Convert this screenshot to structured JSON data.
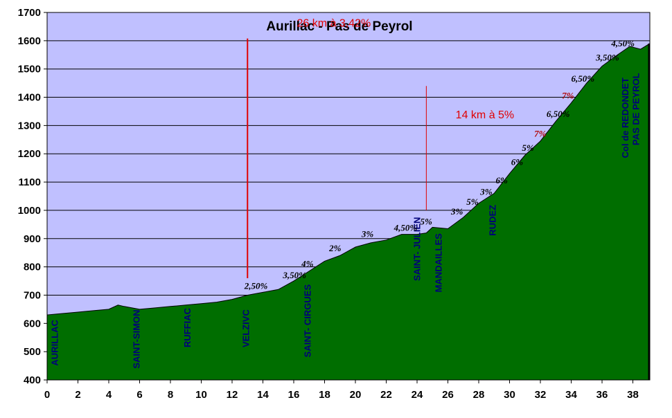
{
  "chart_data": {
    "type": "area",
    "title": "Aurillac - Pas de Peyrol",
    "xlabel": "",
    "ylabel": "",
    "xlim": [
      0,
      39.1
    ],
    "ylim": [
      400,
      1700
    ],
    "x_ticks": [
      0,
      2,
      4,
      6,
      8,
      10,
      12,
      14,
      16,
      18,
      20,
      22,
      24,
      26,
      28,
      30,
      32,
      34,
      36,
      38
    ],
    "y_ticks": [
      400,
      500,
      600,
      700,
      800,
      900,
      1000,
      1100,
      1200,
      1300,
      1400,
      1500,
      1600,
      1700
    ],
    "grid": "horizontal",
    "colors": {
      "plot_background": "#c0c0ff",
      "area_fill": "#006e00",
      "marker_line": "#e00000",
      "place_label": "#00007a",
      "grade_label": "#000000",
      "grade_label_steep": "#b00000"
    },
    "series": [
      {
        "x": [
          0,
          1,
          2,
          3,
          4,
          4.6,
          5,
          6,
          7,
          8,
          9,
          10,
          11,
          12,
          13,
          14,
          15,
          16,
          17,
          18,
          19,
          20,
          21,
          22,
          23,
          24,
          24.6,
          25,
          26,
          27,
          28,
          29,
          30,
          31,
          32,
          33,
          34,
          35,
          36,
          37,
          37.8,
          38.5,
          39.1
        ],
        "values": [
          630,
          635,
          640,
          645,
          650,
          665,
          660,
          650,
          655,
          660,
          665,
          670,
          675,
          685,
          700,
          710,
          720,
          750,
          785,
          820,
          840,
          870,
          885,
          895,
          915,
          915,
          920,
          940,
          935,
          975,
          1025,
          1060,
          1130,
          1195,
          1245,
          1315,
          1380,
          1450,
          1510,
          1550,
          1580,
          1570,
          1590
        ]
      }
    ],
    "annotations": {
      "summary_total": {
        "text": "26 km à 3,42%",
        "x": 18.6,
        "y": 1650
      },
      "summary_final": {
        "text": "14 km à 5%",
        "x": 28.4,
        "y": 1325
      },
      "markers": [
        {
          "x": 13,
          "y_from": 760,
          "y_to": 1608,
          "weight": "thick"
        },
        {
          "x": 24.6,
          "y_from": 1000,
          "y_to": 1440,
          "weight": "thin"
        }
      ],
      "places": [
        {
          "name": "AURILLAC",
          "x": 0.7,
          "y": 450
        },
        {
          "name": "SAINT-SIMON",
          "x": 6.0,
          "y": 440
        },
        {
          "name": "RUFFIAC",
          "x": 9.3,
          "y": 515
        },
        {
          "name": "VELZIVC",
          "x": 13.1,
          "y": 515
        },
        {
          "name": "SAINT- CIRGUES",
          "x": 17.1,
          "y": 480
        },
        {
          "name": "SAINT- JULIEN",
          "x": 24.2,
          "y": 750
        },
        {
          "name": "MANDAILLES",
          "x": 25.6,
          "y": 710
        },
        {
          "name": "RUDEZ",
          "x": 29.1,
          "y": 910
        },
        {
          "name": "Col de REDONDET",
          "x": 37.7,
          "y": 1185
        },
        {
          "name": "PAS DE PEYROL",
          "x": 38.4,
          "y": 1230
        }
      ],
      "grades": [
        {
          "text": "2,50%",
          "x": 12.8,
          "y": 722,
          "steep": false
        },
        {
          "text": "3,50%",
          "x": 15.3,
          "y": 760,
          "steep": false
        },
        {
          "text": "4%",
          "x": 16.5,
          "y": 800,
          "steep": false
        },
        {
          "text": "2%",
          "x": 18.3,
          "y": 855,
          "steep": false
        },
        {
          "text": "3%",
          "x": 20.4,
          "y": 905,
          "steep": false
        },
        {
          "text": "4,50%",
          "x": 22.5,
          "y": 928,
          "steep": false
        },
        {
          "text": "5%",
          "x": 24.2,
          "y": 950,
          "steep": false
        },
        {
          "text": "3%",
          "x": 26.2,
          "y": 985,
          "steep": false
        },
        {
          "text": "5%",
          "x": 27.2,
          "y": 1020,
          "steep": false
        },
        {
          "text": "3%",
          "x": 28.1,
          "y": 1055,
          "steep": false
        },
        {
          "text": "6%",
          "x": 29.1,
          "y": 1095,
          "steep": false
        },
        {
          "text": "6%",
          "x": 30.1,
          "y": 1160,
          "steep": false
        },
        {
          "text": "5%",
          "x": 30.8,
          "y": 1210,
          "steep": false
        },
        {
          "text": "7%",
          "x": 31.6,
          "y": 1260,
          "steep": true
        },
        {
          "text": "6,50%",
          "x": 32.4,
          "y": 1330,
          "steep": false
        },
        {
          "text": "7%",
          "x": 33.4,
          "y": 1395,
          "steep": true
        },
        {
          "text": "6,50%",
          "x": 34.0,
          "y": 1455,
          "steep": false
        },
        {
          "text": "3,50%",
          "x": 35.6,
          "y": 1530,
          "steep": false
        },
        {
          "text": "4,50%",
          "x": 36.6,
          "y": 1580,
          "steep": false
        }
      ]
    }
  }
}
